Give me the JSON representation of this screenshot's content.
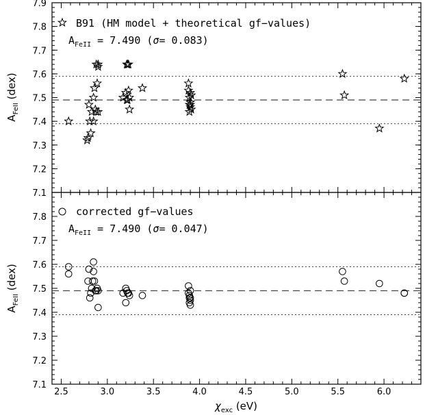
{
  "chart_data": [
    {
      "type": "scatter",
      "panel": "top",
      "marker": "star",
      "legend_label": "B91 (HM model + theoretical gf−values)",
      "stat_prefix": "A",
      "stat_sub": "FeII",
      "stat_rest": " = 7.490 (",
      "stat_sigma": "σ",
      "stat_value": "= 0.083)",
      "ylabel_main": "A",
      "ylabel_sub": "FeII",
      "ylabel_unit": " (dex)",
      "mean": 7.49,
      "sigma_lines": [
        7.39,
        7.59
      ],
      "ylim": [
        7.1,
        7.9
      ],
      "y_ticks": [
        "7.1",
        "7.2",
        "7.3",
        "7.4",
        "7.5",
        "7.6",
        "7.7",
        "7.8",
        "7.9"
      ],
      "x": [
        2.58,
        2.78,
        2.79,
        2.8,
        2.81,
        2.82,
        2.83,
        2.85,
        2.85,
        2.86,
        2.87,
        2.88,
        2.88,
        2.89,
        2.9,
        2.9,
        2.9,
        3.17,
        3.2,
        3.21,
        3.21,
        3.22,
        3.22,
        3.23,
        3.23,
        3.24,
        3.24,
        3.38,
        3.88,
        3.88,
        3.89,
        3.89,
        3.89,
        3.9,
        3.9,
        3.9,
        3.9,
        3.91,
        3.91,
        5.55,
        5.57,
        5.95,
        6.22
      ],
      "y": [
        7.4,
        7.32,
        7.33,
        7.47,
        7.4,
        7.35,
        7.44,
        7.4,
        7.5,
        7.54,
        7.45,
        7.44,
        7.64,
        7.56,
        7.63,
        7.64,
        7.44,
        7.5,
        7.52,
        7.64,
        7.49,
        7.64,
        7.49,
        7.64,
        7.53,
        7.45,
        7.5,
        7.54,
        7.53,
        7.56,
        7.47,
        7.5,
        7.44,
        7.52,
        7.46,
        7.48,
        7.47,
        7.51,
        7.45,
        7.6,
        7.51,
        7.37,
        7.58
      ]
    },
    {
      "type": "scatter",
      "panel": "bottom",
      "marker": "circle",
      "legend_label": "corrected gf−values",
      "stat_prefix": "A",
      "stat_sub": "FeII",
      "stat_rest": " = 7.490 (",
      "stat_sigma": "σ",
      "stat_value": "= 0.047)",
      "ylabel_main": "A",
      "ylabel_sub": "FeII",
      "ylabel_unit": " (dex)",
      "mean": 7.49,
      "sigma_lines": [
        7.39,
        7.59
      ],
      "ylim": [
        7.1,
        7.9
      ],
      "y_ticks": [
        "7.1",
        "7.2",
        "7.3",
        "7.4",
        "7.5",
        "7.6",
        "7.7",
        "7.8"
      ],
      "xlabel_main": "χ",
      "xlabel_sub": "exc",
      "xlabel_unit": " (eV)",
      "xlim": [
        2.4,
        6.4
      ],
      "x_ticks": [
        "2.5",
        "3.0",
        "3.5",
        "4.0",
        "4.5",
        "5.0",
        "5.5",
        "6.0"
      ],
      "x": [
        2.58,
        2.58,
        2.79,
        2.8,
        2.81,
        2.82,
        2.83,
        2.84,
        2.85,
        2.85,
        2.86,
        2.87,
        2.88,
        2.89,
        2.9,
        2.9,
        3.17,
        3.2,
        3.2,
        3.21,
        3.22,
        3.23,
        3.24,
        3.38,
        3.88,
        3.88,
        3.89,
        3.89,
        3.89,
        3.9,
        3.9,
        3.9,
        3.9,
        5.55,
        5.57,
        5.95,
        6.22,
        6.22
      ],
      "y": [
        7.59,
        7.56,
        7.53,
        7.58,
        7.46,
        7.48,
        7.5,
        7.53,
        7.61,
        7.57,
        7.53,
        7.49,
        7.49,
        7.5,
        7.42,
        7.49,
        7.48,
        7.5,
        7.44,
        7.49,
        7.48,
        7.48,
        7.47,
        7.47,
        7.51,
        7.48,
        7.47,
        7.46,
        7.44,
        7.49,
        7.45,
        7.43,
        7.46,
        7.57,
        7.53,
        7.52,
        7.48,
        7.48
      ]
    }
  ]
}
